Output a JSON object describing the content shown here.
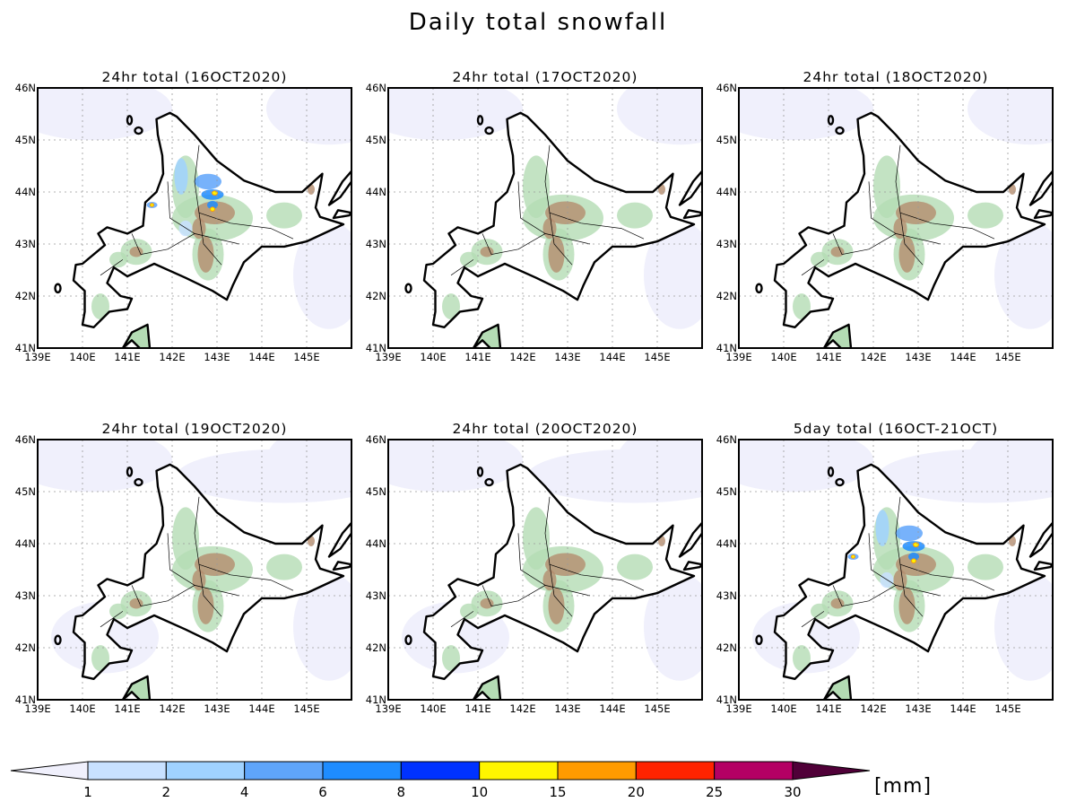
{
  "figure": {
    "title": "Daily total snowfall",
    "panels": [
      {
        "title": "24hr total (16OCT2020)",
        "snow": "heavy"
      },
      {
        "title": "24hr total (17OCT2020)",
        "snow": "none"
      },
      {
        "title": "24hr total (18OCT2020)",
        "snow": "none"
      },
      {
        "title": "24hr total (19OCT2020)",
        "snow": "none"
      },
      {
        "title": "24hr total (20OCT2020)",
        "snow": "none"
      },
      {
        "title": "5day total (16OCT-21OCT)",
        "snow": "heavy"
      }
    ],
    "lon_ticks": [
      "139E",
      "140E",
      "141E",
      "142E",
      "143E",
      "144E",
      "145E"
    ],
    "lat_ticks": [
      "41N",
      "42N",
      "43N",
      "44N",
      "45N",
      "46N"
    ],
    "lon_range": [
      139,
      146
    ],
    "lat_range": [
      41,
      46
    ]
  },
  "colorbar": {
    "levels": [
      "1",
      "2",
      "4",
      "6",
      "8",
      "10",
      "15",
      "20",
      "25",
      "30"
    ],
    "colors": [
      "#c8e1ff",
      "#a0d2ff",
      "#5fa5fa",
      "#1e8cff",
      "#0032ff",
      "#fff500",
      "#ff9b00",
      "#ff2300",
      "#b40064"
    ],
    "under_color": "#f0f0fc",
    "over_color": "#500038",
    "unit": "[mm]"
  }
}
